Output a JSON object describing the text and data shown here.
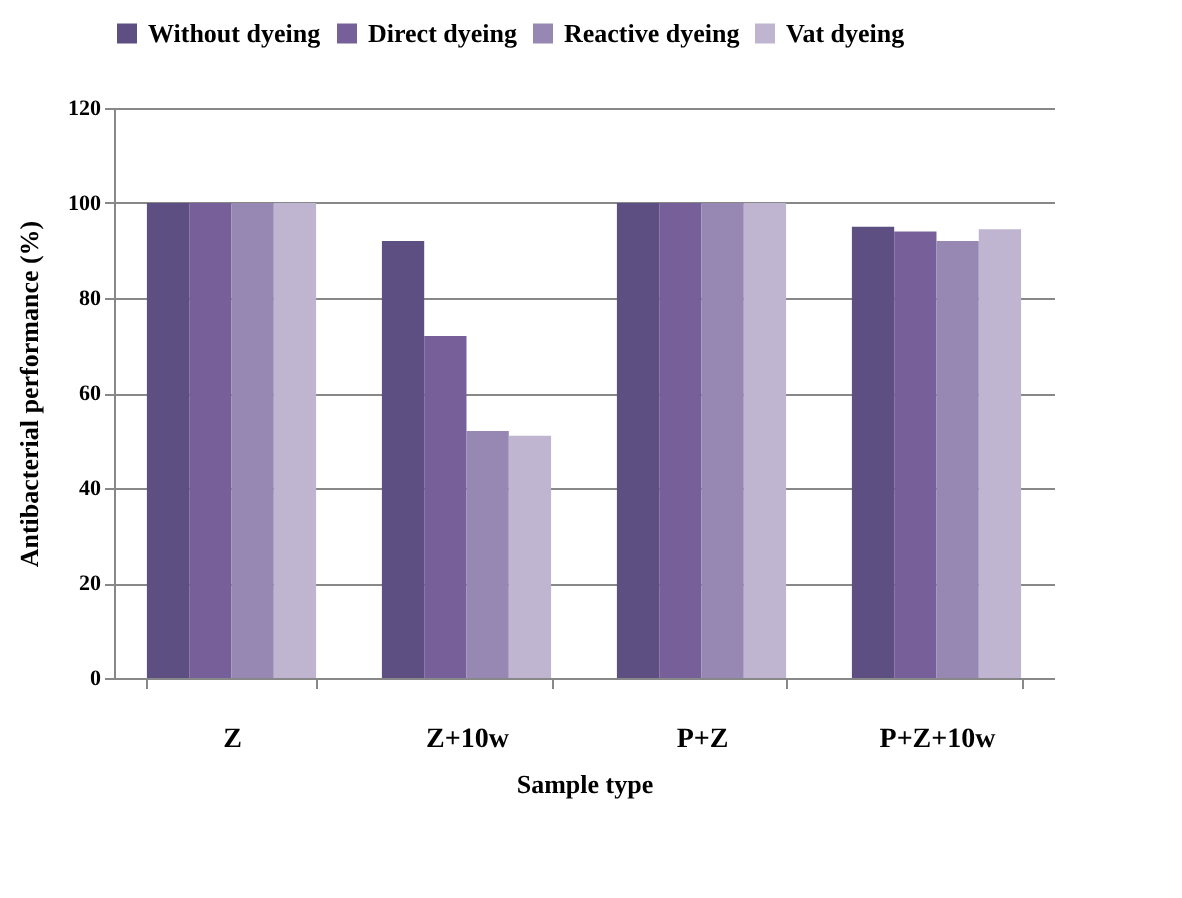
{
  "chart_data": {
    "type": "bar",
    "xlabel": "Sample type",
    "ylabel": "Antibacterial performance (%)",
    "categories": [
      "Z",
      "Z+10w",
      "P+Z",
      "P+Z+10w"
    ],
    "series": [
      {
        "name": "Without dyeing",
        "color": "#5e4f83",
        "values": [
          100,
          92,
          100,
          95
        ]
      },
      {
        "name": "Direct dyeing",
        "color": "#77609a",
        "values": [
          100,
          72,
          100,
          94
        ]
      },
      {
        "name": "Reactive dyeing",
        "color": "#9688b2",
        "values": [
          100,
          52,
          100,
          92
        ]
      },
      {
        "name": "Vat dyeing",
        "color": "#bfb5d1",
        "values": [
          100,
          51,
          100,
          94.5
        ]
      }
    ],
    "ylim": [
      0,
      120
    ],
    "yticks": [
      0,
      20,
      40,
      60,
      80,
      100,
      120
    ],
    "grid": "y",
    "legend": "top"
  }
}
